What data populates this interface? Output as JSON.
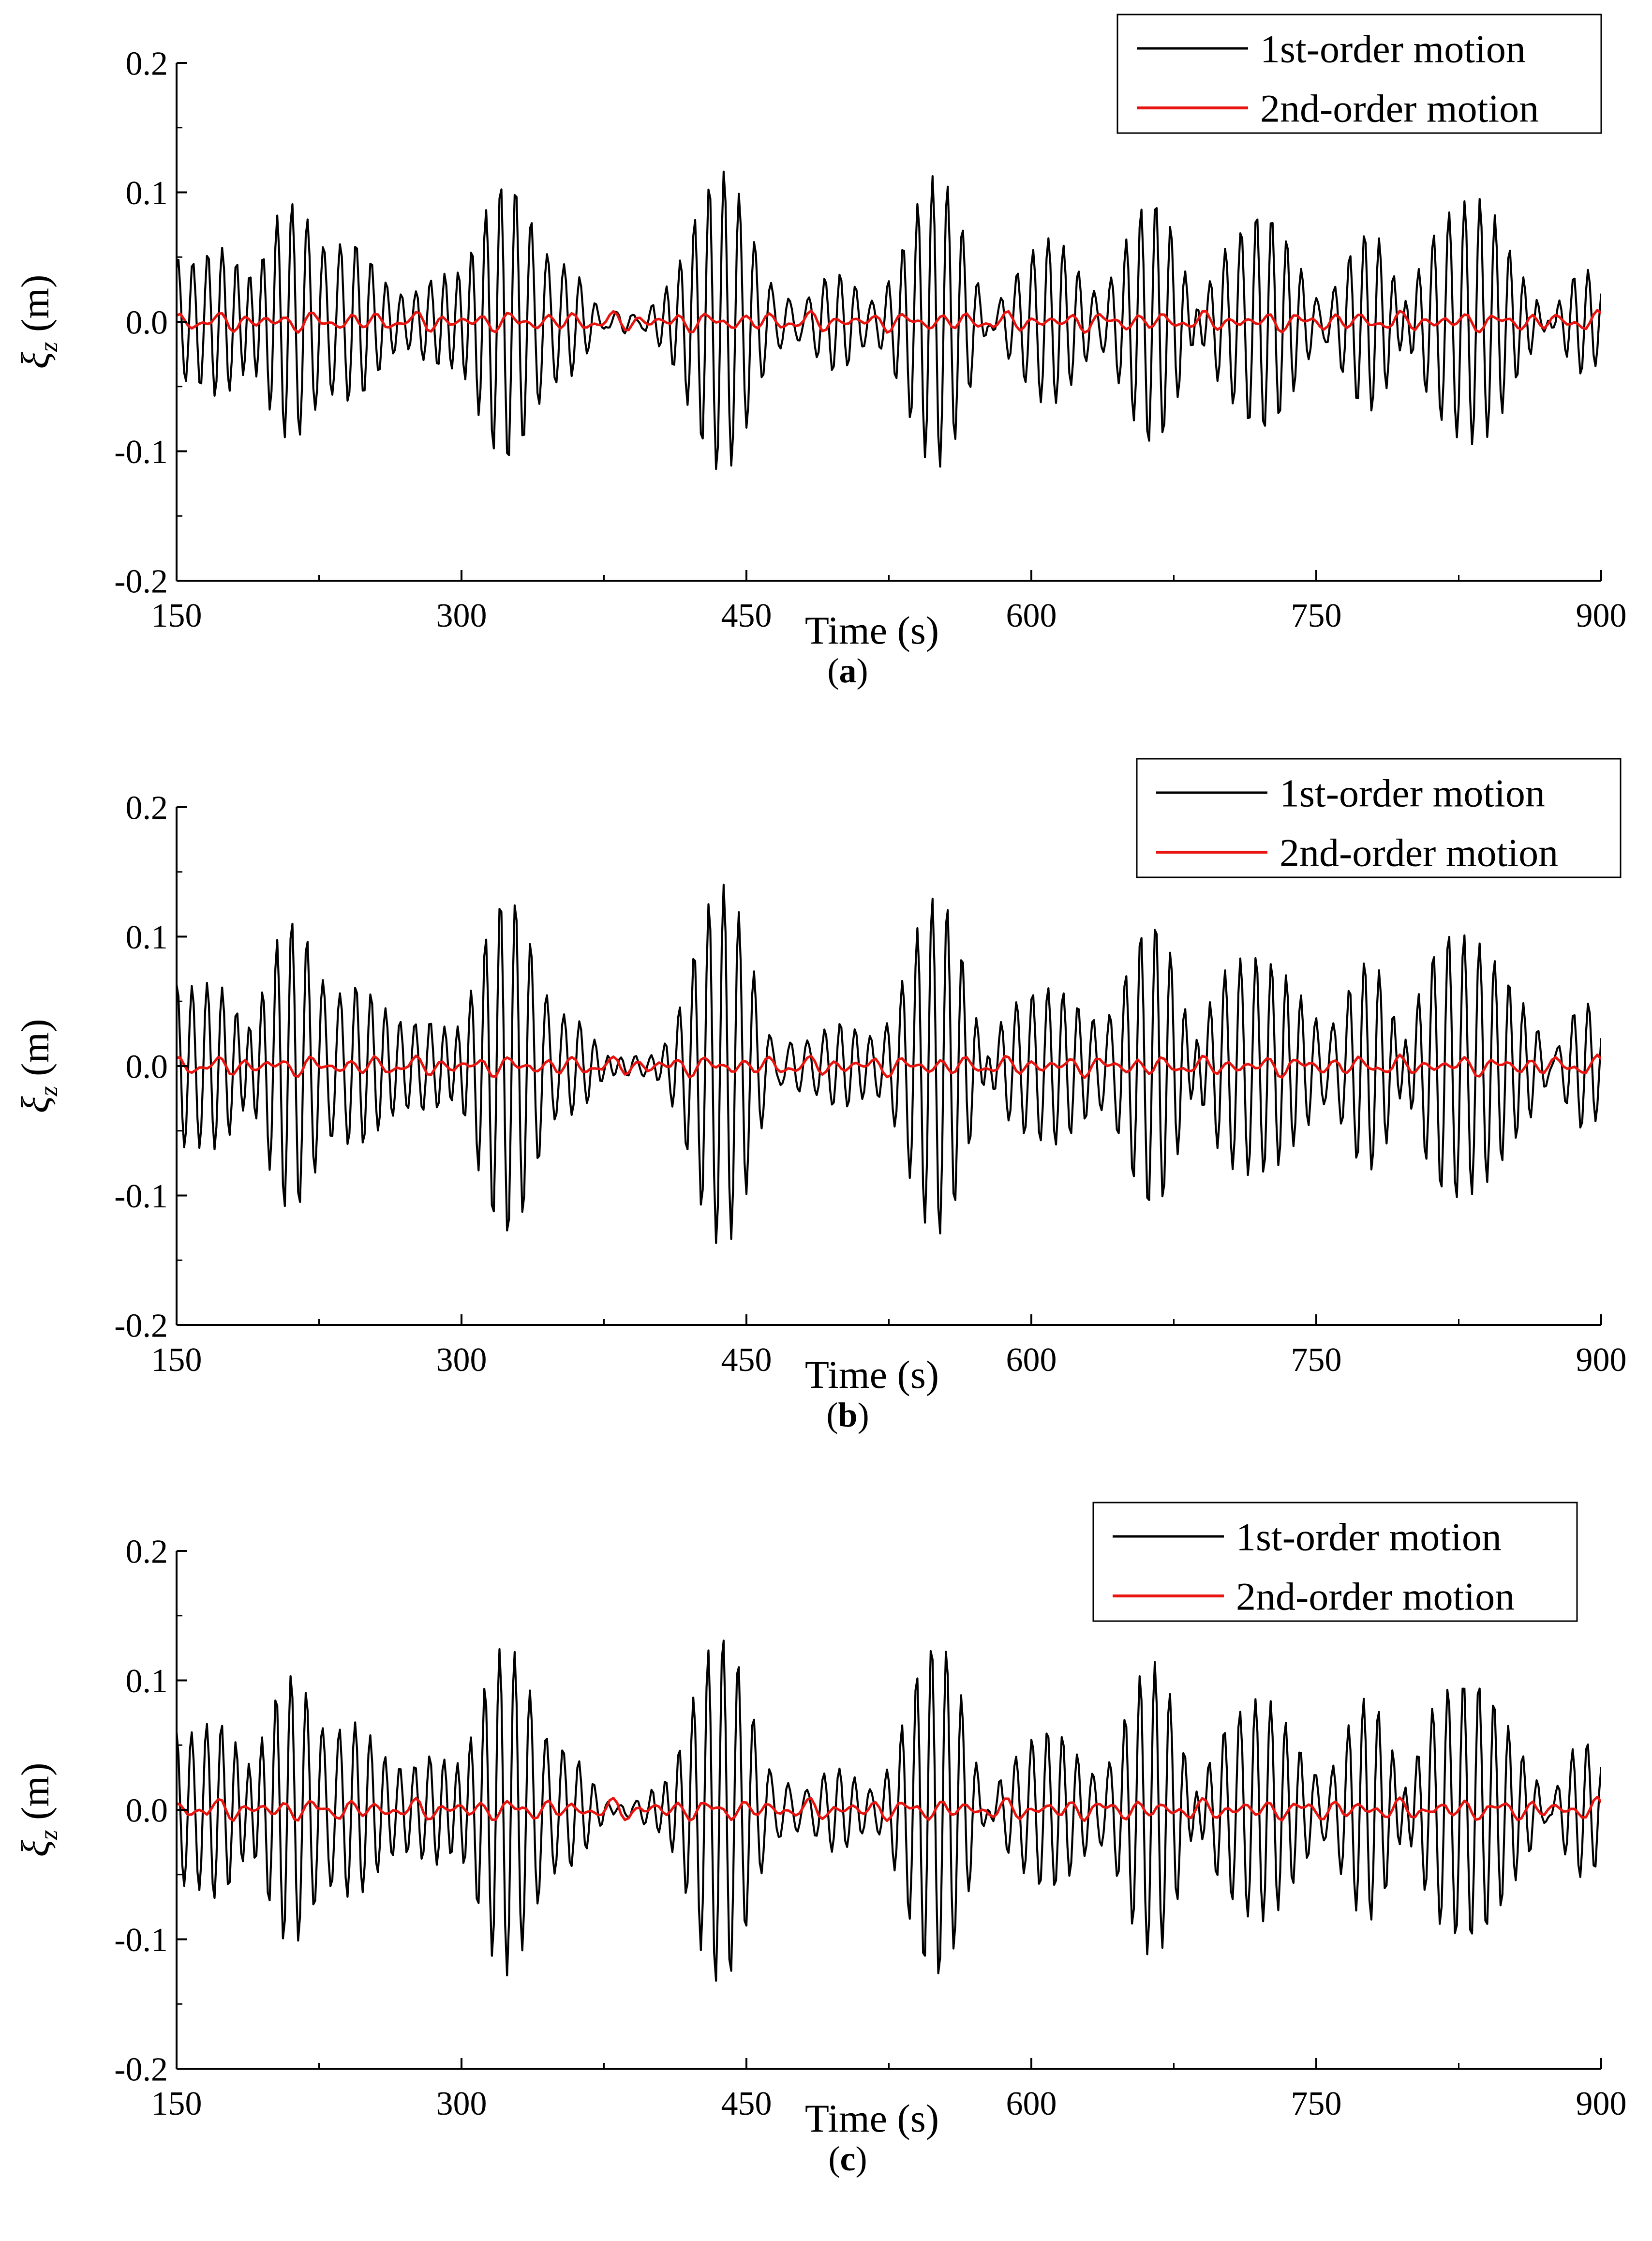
{
  "figure": {
    "panels": [
      "a",
      "b",
      "c"
    ]
  },
  "colors": {
    "first_order": "#000000",
    "second_order": "#e8140f",
    "axis": "#000000",
    "background": "#ffffff"
  },
  "chart_data": [
    {
      "type": "line",
      "caption_letter": "a",
      "caption_open": "(",
      "caption_close": ")",
      "xlabel": "Time (s)",
      "ylabel_symbol": "ξ",
      "ylabel_sub": "z",
      "ylabel_unit": " (m)",
      "xlim": [
        150,
        900
      ],
      "ylim": [
        -0.2,
        0.2
      ],
      "x_ticks": [
        "150",
        "300",
        "450",
        "600",
        "750",
        "900"
      ],
      "y_ticks": [
        "-0.2",
        "-0.1",
        "0.0",
        "0.1",
        "0.2"
      ],
      "legend_position": "top-right",
      "series": [
        {
          "name": "1st-order motion",
          "color": "#000000",
          "dt": 1,
          "t_start": 150,
          "t_end": 900,
          "components": [
            {
              "amp": 0.034,
              "period": 7.8,
              "phase": 0.3
            },
            {
              "amp": 0.03,
              "period": 8.45,
              "phase": 2.1
            },
            {
              "amp": 0.022,
              "period": 7.35,
              "phase": 4.0
            },
            {
              "amp": 0.014,
              "period": 9.1,
              "phase": 1.2
            },
            {
              "amp": 0.012,
              "period": 6.9,
              "phase": 5.3
            }
          ],
          "peak_ampl": 0.116,
          "trough_ampl": -0.112
        },
        {
          "name": "2nd-order motion",
          "color": "#e8140f",
          "dt": 2,
          "t_start": 150,
          "t_end": 900,
          "components": [
            {
              "amp": 0.0035,
              "period": 11.5,
              "phase": 0.8
            },
            {
              "amp": 0.003,
              "period": 17.3,
              "phase": 2.4
            },
            {
              "amp": 0.002,
              "period": 26.0,
              "phase": 4.1
            }
          ],
          "peak_ampl": 0.009,
          "trough_ampl": -0.008
        }
      ]
    },
    {
      "type": "line",
      "caption_letter": "b",
      "caption_open": "(",
      "caption_close": ")",
      "xlabel": "Time (s)",
      "ylabel_symbol": "ξ",
      "ylabel_sub": "z",
      "ylabel_unit": " (m)",
      "xlim": [
        150,
        900
      ],
      "ylim": [
        -0.2,
        0.2
      ],
      "x_ticks": [
        "150",
        "300",
        "450",
        "600",
        "750",
        "900"
      ],
      "y_ticks": [
        "-0.2",
        "-0.1",
        "0.0",
        "0.1",
        "0.2"
      ],
      "legend_position": "top-right",
      "series": [
        {
          "name": "1st-order motion",
          "color": "#000000",
          "dt": 1,
          "t_start": 150,
          "t_end": 900,
          "components": [
            {
              "amp": 0.04,
              "period": 7.8,
              "phase": 0.5
            },
            {
              "amp": 0.036,
              "period": 8.45,
              "phase": 2.3
            },
            {
              "amp": 0.026,
              "period": 7.35,
              "phase": 4.2
            },
            {
              "amp": 0.016,
              "period": 9.1,
              "phase": 1.0
            },
            {
              "amp": 0.013,
              "period": 6.9,
              "phase": 5.0
            }
          ],
          "peak_ampl": 0.14,
          "trough_ampl": -0.135
        },
        {
          "name": "2nd-order motion",
          "color": "#e8140f",
          "dt": 2,
          "t_start": 150,
          "t_end": 900,
          "components": [
            {
              "amp": 0.0035,
              "period": 11.5,
              "phase": 1.0
            },
            {
              "amp": 0.003,
              "period": 17.3,
              "phase": 2.7
            },
            {
              "amp": 0.002,
              "period": 26.0,
              "phase": 3.9
            }
          ],
          "peak_ampl": 0.009,
          "trough_ampl": -0.008
        }
      ]
    },
    {
      "type": "line",
      "caption_letter": "c",
      "caption_open": "(",
      "caption_close": ")",
      "xlabel": "Time (s)",
      "ylabel_symbol": "ξ",
      "ylabel_sub": "z",
      "ylabel_unit": " (m)",
      "xlim": [
        150,
        900
      ],
      "ylim": [
        -0.2,
        0.2
      ],
      "x_ticks": [
        "150",
        "300",
        "450",
        "600",
        "750",
        "900"
      ],
      "y_ticks": [
        "-0.2",
        "-0.1",
        "0.0",
        "0.1",
        "0.2"
      ],
      "legend_position": "top-right",
      "series": [
        {
          "name": "1st-order motion",
          "color": "#000000",
          "dt": 1,
          "t_start": 150,
          "t_end": 900,
          "components": [
            {
              "amp": 0.038,
              "period": 7.8,
              "phase": 0.7
            },
            {
              "amp": 0.034,
              "period": 8.45,
              "phase": 2.6
            },
            {
              "amp": 0.025,
              "period": 7.35,
              "phase": 4.5
            },
            {
              "amp": 0.016,
              "period": 9.1,
              "phase": 1.4
            },
            {
              "amp": 0.013,
              "period": 6.9,
              "phase": 5.6
            }
          ],
          "peak_ampl": 0.132,
          "trough_ampl": -0.127
        },
        {
          "name": "2nd-order motion",
          "color": "#e8140f",
          "dt": 2,
          "t_start": 150,
          "t_end": 900,
          "components": [
            {
              "amp": 0.0035,
              "period": 11.5,
              "phase": 1.3
            },
            {
              "amp": 0.003,
              "period": 17.3,
              "phase": 2.2
            },
            {
              "amp": 0.002,
              "period": 26.0,
              "phase": 4.4
            }
          ],
          "peak_ampl": 0.01,
          "trough_ampl": -0.008
        }
      ]
    }
  ]
}
